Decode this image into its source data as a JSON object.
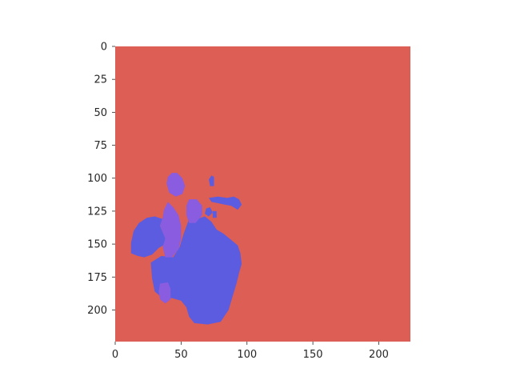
{
  "chart_data": {
    "type": "heatmap",
    "title": "",
    "xlabel": "",
    "ylabel": "",
    "xlim": [
      0,
      224
    ],
    "ylim": [
      224,
      0
    ],
    "x_ticks": [
      0,
      50,
      100,
      150,
      200
    ],
    "y_ticks": [
      0,
      25,
      50,
      75,
      100,
      125,
      150,
      175,
      200
    ],
    "grid": false,
    "colors": {
      "background": "#dc5e54",
      "region_blue": "#5c5ce0",
      "region_purple": "#8a5ce0"
    },
    "regions": [
      {
        "color": "region_blue",
        "points": [
          [
            73,
            98
          ],
          [
            75,
            99
          ],
          [
            75,
            106
          ],
          [
            72,
            106
          ],
          [
            71,
            101
          ]
        ]
      },
      {
        "color": "region_blue",
        "points": [
          [
            71,
            115
          ],
          [
            78,
            114
          ],
          [
            85,
            115
          ],
          [
            90,
            114
          ],
          [
            94,
            116
          ],
          [
            96,
            120
          ],
          [
            93,
            124
          ],
          [
            88,
            121
          ],
          [
            83,
            120
          ],
          [
            78,
            119
          ],
          [
            73,
            118
          ]
        ]
      },
      {
        "color": "region_blue",
        "points": [
          [
            69,
            123
          ],
          [
            72,
            122
          ],
          [
            74,
            126
          ],
          [
            71,
            129
          ],
          [
            68,
            127
          ]
        ]
      },
      {
        "color": "region_blue",
        "points": [
          [
            74,
            125
          ],
          [
            77,
            125
          ],
          [
            77,
            130
          ],
          [
            74,
            130
          ]
        ]
      },
      {
        "color": "region_blue",
        "points": [
          [
            24,
            130
          ],
          [
            30,
            129
          ],
          [
            36,
            131
          ],
          [
            34,
            136
          ],
          [
            36,
            141
          ],
          [
            39,
            145
          ],
          [
            38,
            150
          ],
          [
            33,
            153
          ],
          [
            28,
            158
          ],
          [
            22,
            160
          ],
          [
            17,
            159
          ],
          [
            12,
            157
          ],
          [
            12,
            149
          ],
          [
            14,
            140
          ],
          [
            18,
            134
          ]
        ]
      },
      {
        "color": "region_blue",
        "points": [
          [
            56,
            131
          ],
          [
            62,
            131
          ],
          [
            68,
            129
          ],
          [
            73,
            133
          ],
          [
            77,
            139
          ],
          [
            82,
            142
          ],
          [
            87,
            146
          ],
          [
            93,
            151
          ],
          [
            95,
            157
          ],
          [
            96,
            165
          ],
          [
            94,
            172
          ],
          [
            92,
            180
          ],
          [
            89,
            190
          ],
          [
            86,
            200
          ],
          [
            80,
            209
          ],
          [
            70,
            211
          ],
          [
            60,
            210
          ],
          [
            56,
            205
          ],
          [
            54,
            198
          ],
          [
            50,
            193
          ],
          [
            43,
            191
          ],
          [
            36,
            191
          ],
          [
            30,
            186
          ],
          [
            28,
            176
          ],
          [
            27,
            164
          ],
          [
            35,
            159
          ],
          [
            44,
            160
          ],
          [
            49,
            152
          ],
          [
            52,
            142
          ]
        ]
      },
      {
        "color": "region_purple",
        "points": [
          [
            43,
            96
          ],
          [
            47,
            96
          ],
          [
            51,
            100
          ],
          [
            53,
            106
          ],
          [
            51,
            112
          ],
          [
            46,
            114
          ],
          [
            41,
            111
          ],
          [
            39,
            104
          ],
          [
            40,
            99
          ]
        ]
      },
      {
        "color": "region_purple",
        "points": [
          [
            56,
            116
          ],
          [
            62,
            116
          ],
          [
            66,
            121
          ],
          [
            66,
            128
          ],
          [
            61,
            134
          ],
          [
            56,
            134
          ],
          [
            54,
            128
          ],
          [
            54,
            121
          ]
        ]
      },
      {
        "color": "region_purple",
        "points": [
          [
            40,
            118
          ],
          [
            44,
            122
          ],
          [
            48,
            128
          ],
          [
            50,
            136
          ],
          [
            50,
            146
          ],
          [
            48,
            154
          ],
          [
            43,
            160
          ],
          [
            38,
            160
          ],
          [
            36,
            152
          ],
          [
            38,
            146
          ],
          [
            36,
            141
          ],
          [
            34,
            136
          ],
          [
            36,
            130
          ],
          [
            37,
            124
          ]
        ]
      },
      {
        "color": "region_purple",
        "points": [
          [
            34,
            180
          ],
          [
            40,
            179
          ],
          [
            42,
            184
          ],
          [
            42,
            192
          ],
          [
            38,
            195
          ],
          [
            34,
            192
          ],
          [
            33,
            186
          ]
        ]
      }
    ]
  }
}
